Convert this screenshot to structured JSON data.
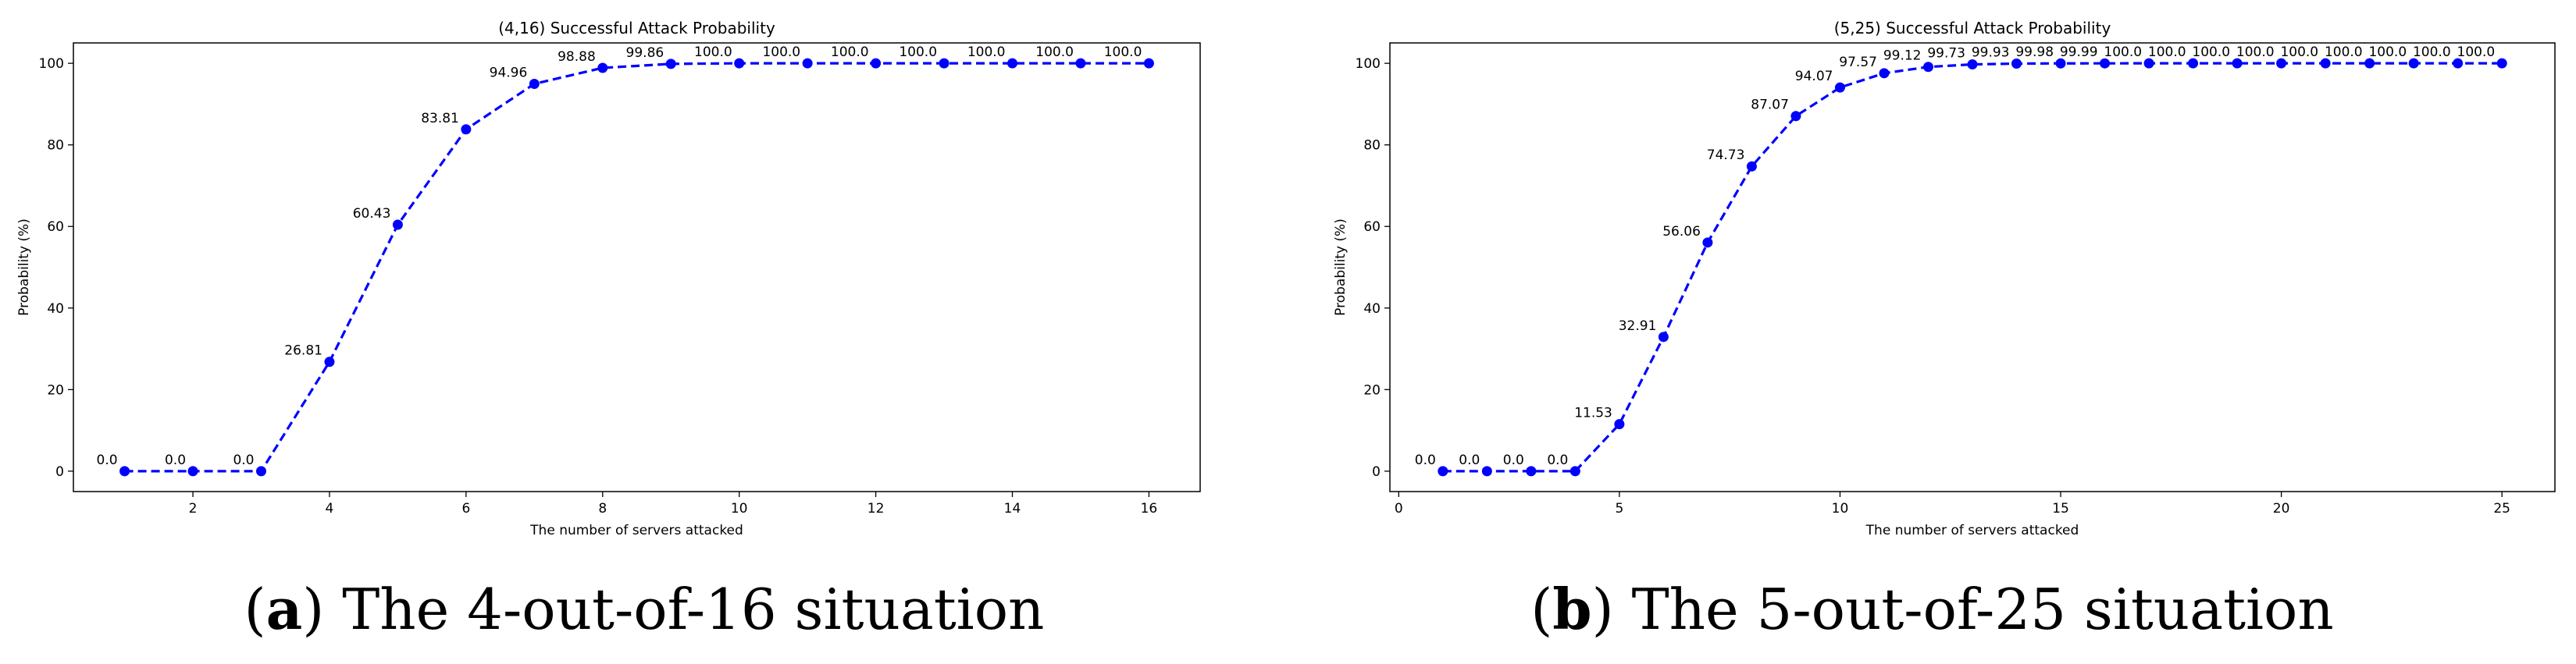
{
  "chart_data": [
    {
      "type": "line",
      "title": "(4,16) Successful Attack Probability",
      "xlabel": "The number of servers attacked",
      "ylabel": "Probability (%)",
      "xlim": [
        0.25,
        16.75
      ],
      "ylim": [
        -5,
        105
      ],
      "xticks": [
        2,
        4,
        6,
        8,
        10,
        12,
        14,
        16
      ],
      "yticks": [
        0,
        20,
        40,
        60,
        80,
        100
      ],
      "grid": false,
      "line_color": "#0000ff",
      "line_style": "dashed",
      "marker": "circle",
      "x": [
        1,
        2,
        3,
        4,
        5,
        6,
        7,
        8,
        9,
        10,
        11,
        12,
        13,
        14,
        15,
        16
      ],
      "y": [
        0.0,
        0.0,
        0.0,
        26.81,
        60.43,
        83.81,
        94.96,
        98.88,
        99.86,
        100.0,
        100.0,
        100.0,
        100.0,
        100.0,
        100.0,
        100.0
      ],
      "labels": [
        "0.0",
        "0.0",
        "0.0",
        "26.81",
        "60.43",
        "83.81",
        "94.96",
        "98.88",
        "99.86",
        "100.0",
        "100.0",
        "100.0",
        "100.0",
        "100.0",
        "100.0",
        "100.0"
      ]
    },
    {
      "type": "line",
      "title": "(5,25) Successful Attack Probability",
      "xlabel": "The number of servers attacked",
      "ylabel": "Probability (%)",
      "xlim": [
        -0.2,
        26.2
      ],
      "ylim": [
        -5,
        105
      ],
      "xticks": [
        0,
        5,
        10,
        15,
        20,
        25
      ],
      "yticks": [
        0,
        20,
        40,
        60,
        80,
        100
      ],
      "grid": false,
      "line_color": "#0000ff",
      "line_style": "dashed",
      "marker": "circle",
      "x": [
        1,
        2,
        3,
        4,
        5,
        6,
        7,
        8,
        9,
        10,
        11,
        12,
        13,
        14,
        15,
        16,
        17,
        18,
        19,
        20,
        21,
        22,
        23,
        24,
        25
      ],
      "y": [
        0.0,
        0.0,
        0.0,
        0.0,
        11.53,
        32.91,
        56.06,
        74.73,
        87.07,
        94.07,
        97.57,
        99.12,
        99.73,
        99.93,
        99.98,
        99.99,
        100.0,
        100.0,
        100.0,
        100.0,
        100.0,
        100.0,
        100.0,
        100.0,
        100.0
      ],
      "labels": [
        "0.0",
        "0.0",
        "0.0",
        "0.0",
        "11.53",
        "32.91",
        "56.06",
        "74.73",
        "87.07",
        "94.07",
        "97.57",
        "99.12",
        "99.73",
        "99.93",
        "99.98",
        "99.99",
        "100.0",
        "100.0",
        "100.0",
        "100.0",
        "100.0",
        "100.0",
        "100.0",
        "100.0",
        "100.0"
      ]
    }
  ],
  "captions": [
    {
      "letter": "a",
      "text": ") The 4-out-of-16 situation"
    },
    {
      "letter": "b",
      "text": ") The 5-out-of-25 situation"
    }
  ]
}
